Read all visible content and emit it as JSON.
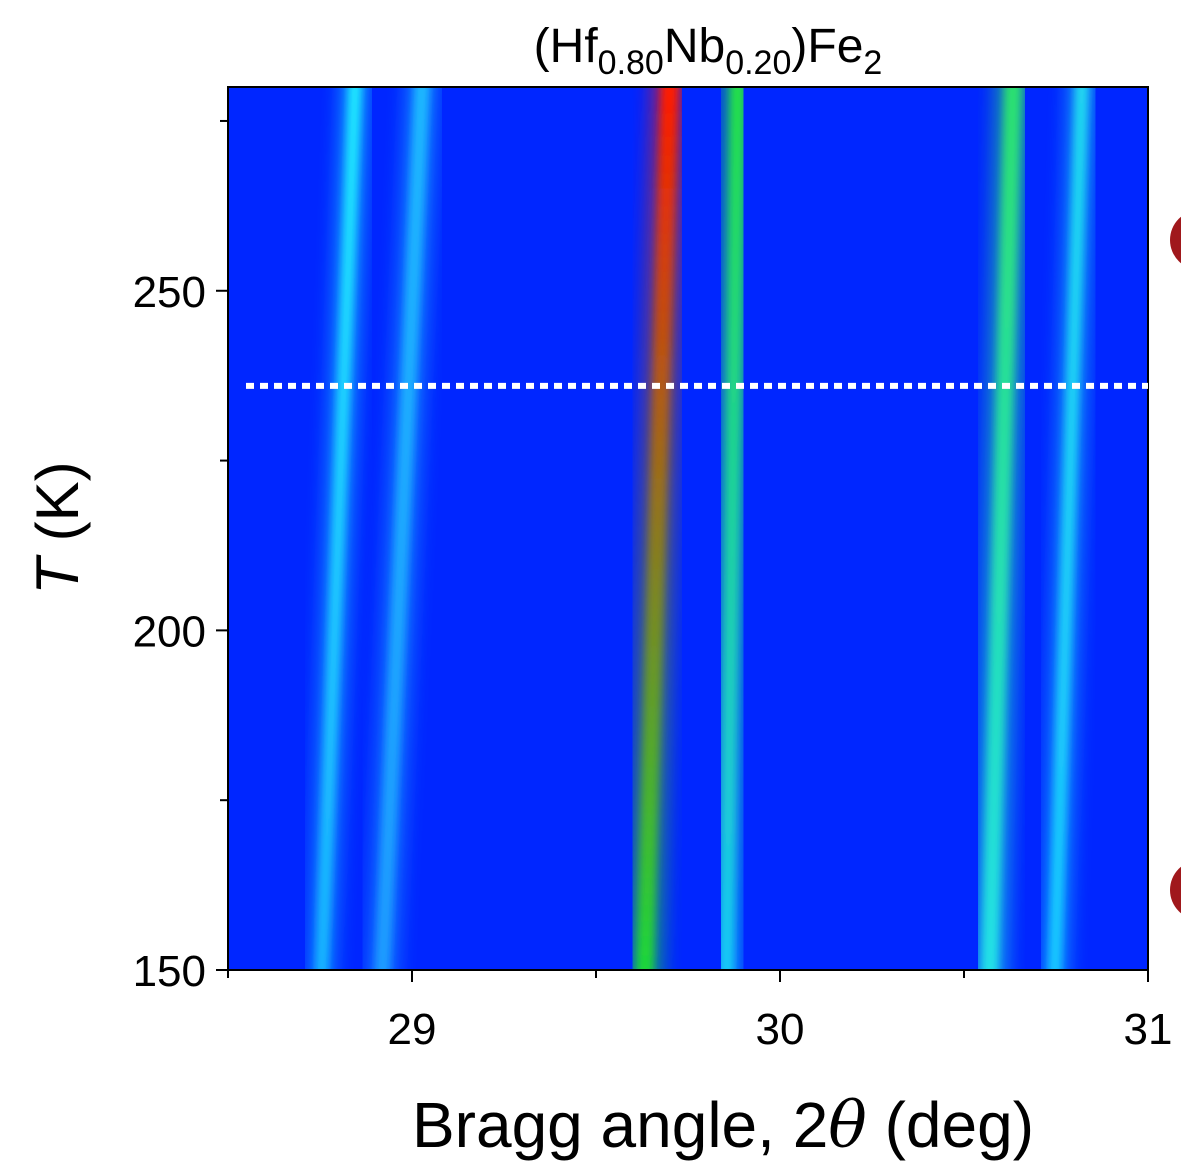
{
  "chart_data": {
    "type": "band-map",
    "title": {
      "parts": [
        "(Hf",
        "0.80",
        "Nb",
        "0.20",
        ")Fe",
        "2"
      ],
      "subscript": [
        false,
        true,
        false,
        true,
        false,
        true
      ]
    },
    "xlabel": {
      "parts": [
        "Bragg angle, 2",
        "θ",
        " (deg)"
      ],
      "italic": [
        false,
        true,
        false
      ]
    },
    "ylabel": {
      "parts": [
        "T",
        " (K)"
      ],
      "italic": [
        true,
        false
      ]
    },
    "xlim": [
      28.5,
      31
    ],
    "xticks": [
      29,
      30,
      31
    ],
    "xminorticks": [
      28.5,
      29.5,
      30.5
    ],
    "ylim": [
      150,
      280
    ],
    "yticks": [
      150,
      200,
      250
    ],
    "yminorticks": [
      175,
      225,
      275
    ],
    "background": "#0026ff",
    "reference_line": 236,
    "reference_color": "#ffffff",
    "series": [
      {
        "x": [
          28.755,
          28.845
        ],
        "y": [
          150,
          280
        ],
        "colors": [
          "#19b4ff",
          "#1ee6ff"
        ],
        "width": 0.035
      },
      {
        "x": [
          28.92,
          29.027
        ],
        "y": [
          150,
          280
        ],
        "colors": [
          "#1e9cff",
          "#1eb8ff"
        ],
        "width": 0.04
      },
      {
        "x": [
          29.633,
          29.7
        ],
        "y": [
          150,
          280
        ],
        "colors": [
          "#1cd83a",
          "#ff1a00"
        ],
        "width": 0.045
      },
      {
        "x": [
          29.855,
          29.885
        ],
        "y": [
          150,
          280
        ],
        "colors": [
          "#18c8f8",
          "#24e048"
        ],
        "width": 0.04
      },
      {
        "x": [
          30.57,
          30.633
        ],
        "y": [
          150,
          280
        ],
        "colors": [
          "#20e0e8",
          "#2ce070"
        ],
        "width": 0.045
      },
      {
        "x": [
          30.747,
          30.82
        ],
        "y": [
          150,
          280
        ],
        "colors": [
          "#18c8ff",
          "#20d8f0"
        ],
        "width": 0.035
      }
    ]
  }
}
